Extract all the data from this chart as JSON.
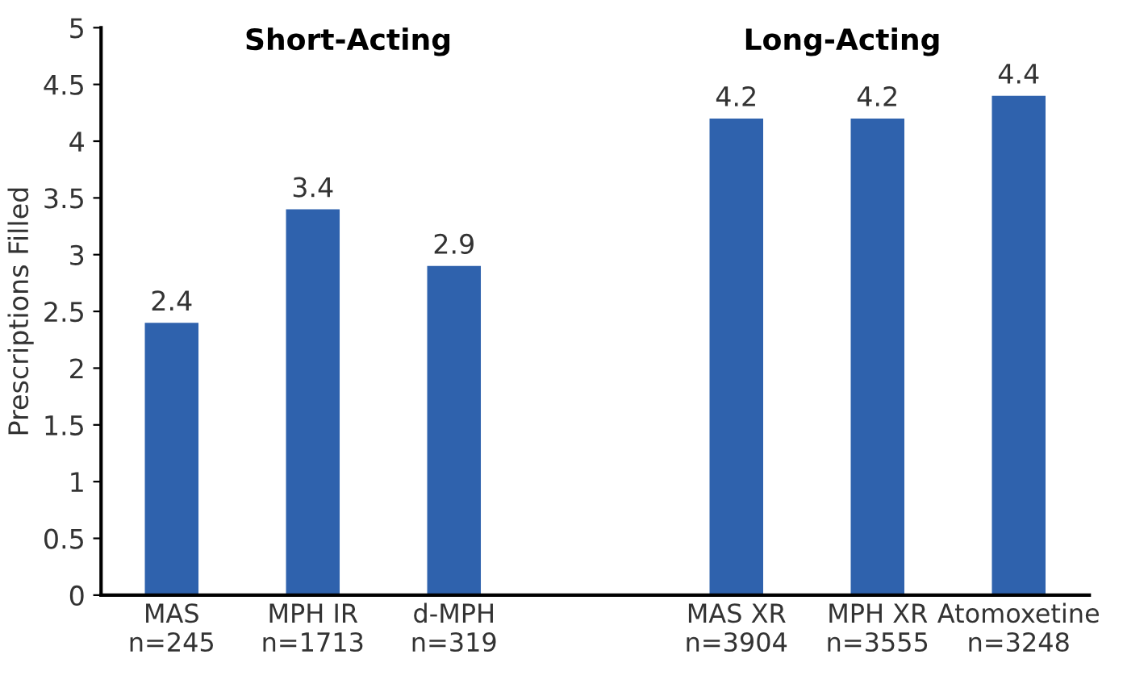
{
  "chart_data": {
    "type": "bar",
    "ylabel": "Prescriptions Filled",
    "categories": [
      "MAS\nn=245",
      "MPH IR\nn=1713",
      "d-MPH\nn=319",
      null,
      "MAS XR\nn=3904",
      "MPH XR\nn=3555",
      "Atomoxetine\nn=3248"
    ],
    "values": [
      2.4,
      3.4,
      2.9,
      null,
      4.2,
      4.2,
      4.4
    ],
    "color": "#2f62ad",
    "ylim": [
      0,
      5
    ],
    "yticks": [
      0,
      0.5,
      1,
      1.5,
      2,
      2.5,
      3,
      3.5,
      4,
      4.5,
      5
    ],
    "data_labels": true,
    "grid": false,
    "annotations": [
      "Short-Acting",
      "Long-Acting"
    ]
  }
}
